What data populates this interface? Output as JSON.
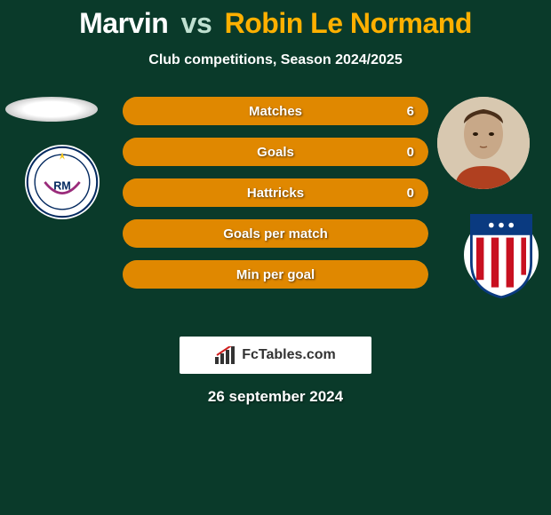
{
  "title": {
    "player1": "Marvin",
    "vs": "vs",
    "player2": "Robin Le Normand"
  },
  "subtitle": "Club competitions, Season 2024/2025",
  "colors": {
    "background": "#0a3a2a",
    "player1_bar": "#c0c0c0",
    "player2_bar": "#e08800",
    "bar_empty": "#1a5a3a",
    "text": "#ffffff",
    "title_p2": "#ffb000"
  },
  "player_left": {
    "name": "Marvin",
    "photo_bg": "#ffffff",
    "club": "Real Madrid"
  },
  "player_right": {
    "name": "Robin Le Normand",
    "photo_bg": "#d8c8b0",
    "club": "Atletico Madrid"
  },
  "bars": [
    {
      "label": "Matches",
      "left": "",
      "right": "6",
      "left_pct": 0,
      "right_pct": 100
    },
    {
      "label": "Goals",
      "left": "",
      "right": "0",
      "left_pct": 0,
      "right_pct": 100
    },
    {
      "label": "Hattricks",
      "left": "",
      "right": "0",
      "left_pct": 0,
      "right_pct": 100
    },
    {
      "label": "Goals per match",
      "left": "",
      "right": "",
      "left_pct": 0,
      "right_pct": 100
    },
    {
      "label": "Min per goal",
      "left": "",
      "right": "",
      "left_pct": 0,
      "right_pct": 100
    }
  ],
  "bar_style": {
    "height": 32,
    "gap": 14,
    "radius": 16,
    "label_fontsize": 15,
    "label_weight": 700
  },
  "footer": {
    "brand": "FcTables.com"
  },
  "date": "26 september 2024"
}
